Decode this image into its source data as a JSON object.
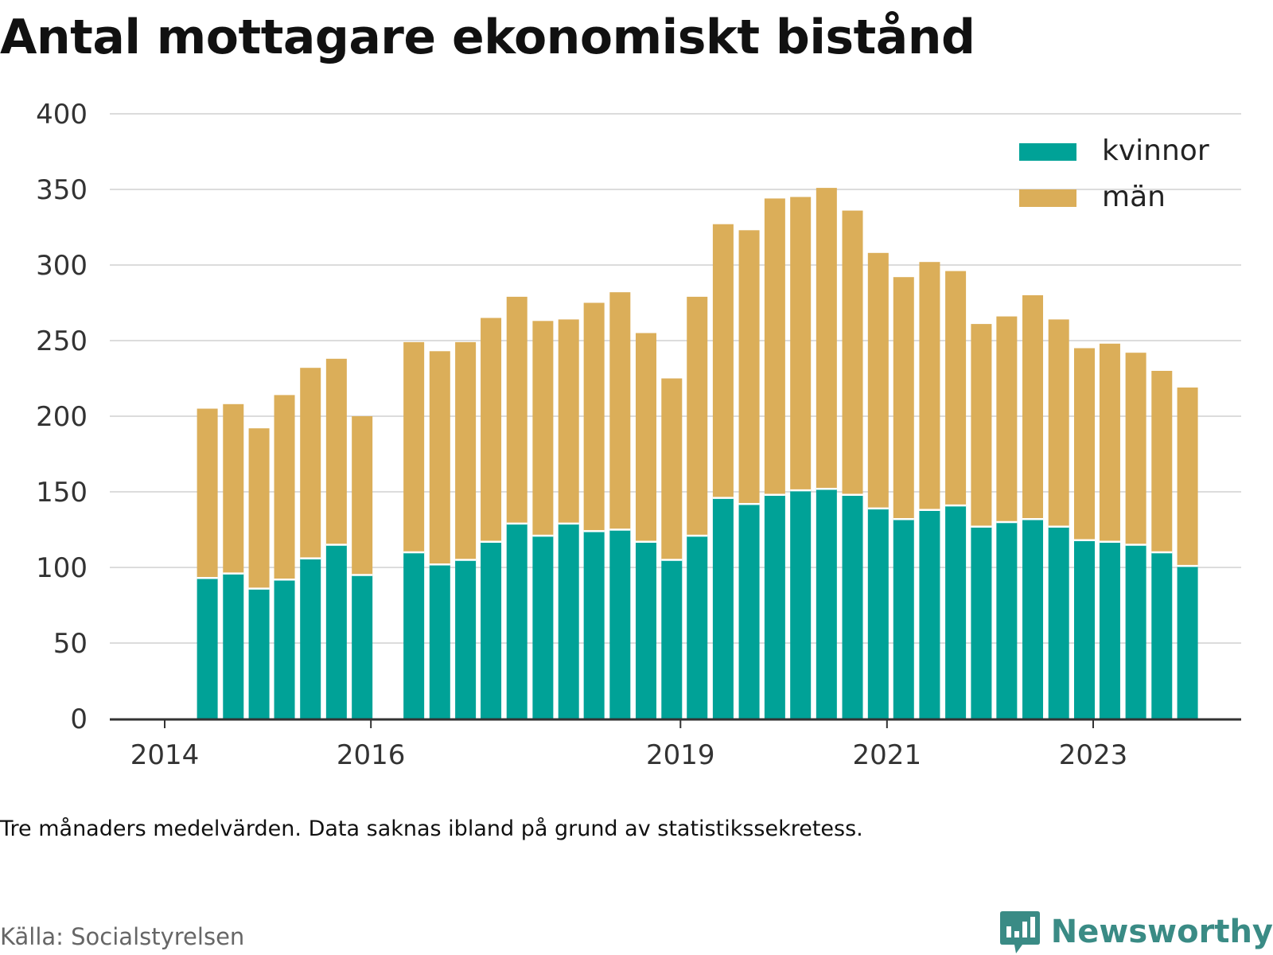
{
  "title": "Antal mottagare ekonomiskt bistånd",
  "note": "Tre månaders medelvärden. Data saknas ibland på grund av statistikssekretess.",
  "source": "Källa: Socialstyrelsen",
  "brand": {
    "name": "Newsworthy",
    "icon": "newsworthy-logo-icon"
  },
  "colors": {
    "kvinnor": "#00a297",
    "man": "#dbae59",
    "grid": "#dcdcdc",
    "axis": "#333333"
  },
  "chart_data": {
    "type": "bar",
    "stacked": true,
    "ylim": [
      0,
      400
    ],
    "yticks": [
      "0",
      "50",
      "100",
      "150",
      "200",
      "250",
      "300",
      "350",
      "400"
    ],
    "xtick_labels": [
      "2014",
      "2016",
      "2019",
      "2021",
      "2023"
    ],
    "xtick_dates": [
      "2014-01-01",
      "2016-01-01",
      "2019-01-01",
      "2021-01-01",
      "2023-01-01"
    ],
    "grid": true,
    "legend": "top-right",
    "series": [
      {
        "name": "kvinnor",
        "values": [
          93,
          96,
          86,
          92,
          106,
          115,
          95,
          110,
          102,
          105,
          117,
          129,
          121,
          129,
          124,
          125,
          117,
          105,
          121,
          146,
          142,
          148,
          151,
          152,
          148,
          139,
          132,
          138,
          141,
          127,
          130,
          132,
          127,
          118,
          117,
          115,
          110,
          101
        ]
      },
      {
        "name": "män",
        "values": [
          112,
          112,
          106,
          122,
          126,
          123,
          105,
          139,
          141,
          144,
          148,
          150,
          142,
          135,
          151,
          157,
          138,
          120,
          158,
          181,
          181,
          196,
          194,
          199,
          188,
          169,
          160,
          164,
          155,
          134,
          136,
          148,
          137,
          127,
          131,
          127,
          120,
          118
        ]
      }
    ],
    "x": [
      "2014-06",
      "2014-09",
      "2014-12",
      "2015-03",
      "2015-06",
      "2015-09",
      "2015-12",
      "2016-06",
      "2016-09",
      "2016-12",
      "2017-03",
      "2017-06",
      "2017-09",
      "2017-12",
      "2018-03",
      "2018-06",
      "2018-09",
      "2018-12",
      "2019-03",
      "2019-06",
      "2019-09",
      "2019-12",
      "2020-03",
      "2020-06",
      "2020-09",
      "2020-12",
      "2021-03",
      "2021-06",
      "2021-09",
      "2021-12",
      "2022-03",
      "2022-06",
      "2022-09",
      "2022-12",
      "2023-03",
      "2023-06",
      "2023-09",
      "2023-12"
    ]
  }
}
